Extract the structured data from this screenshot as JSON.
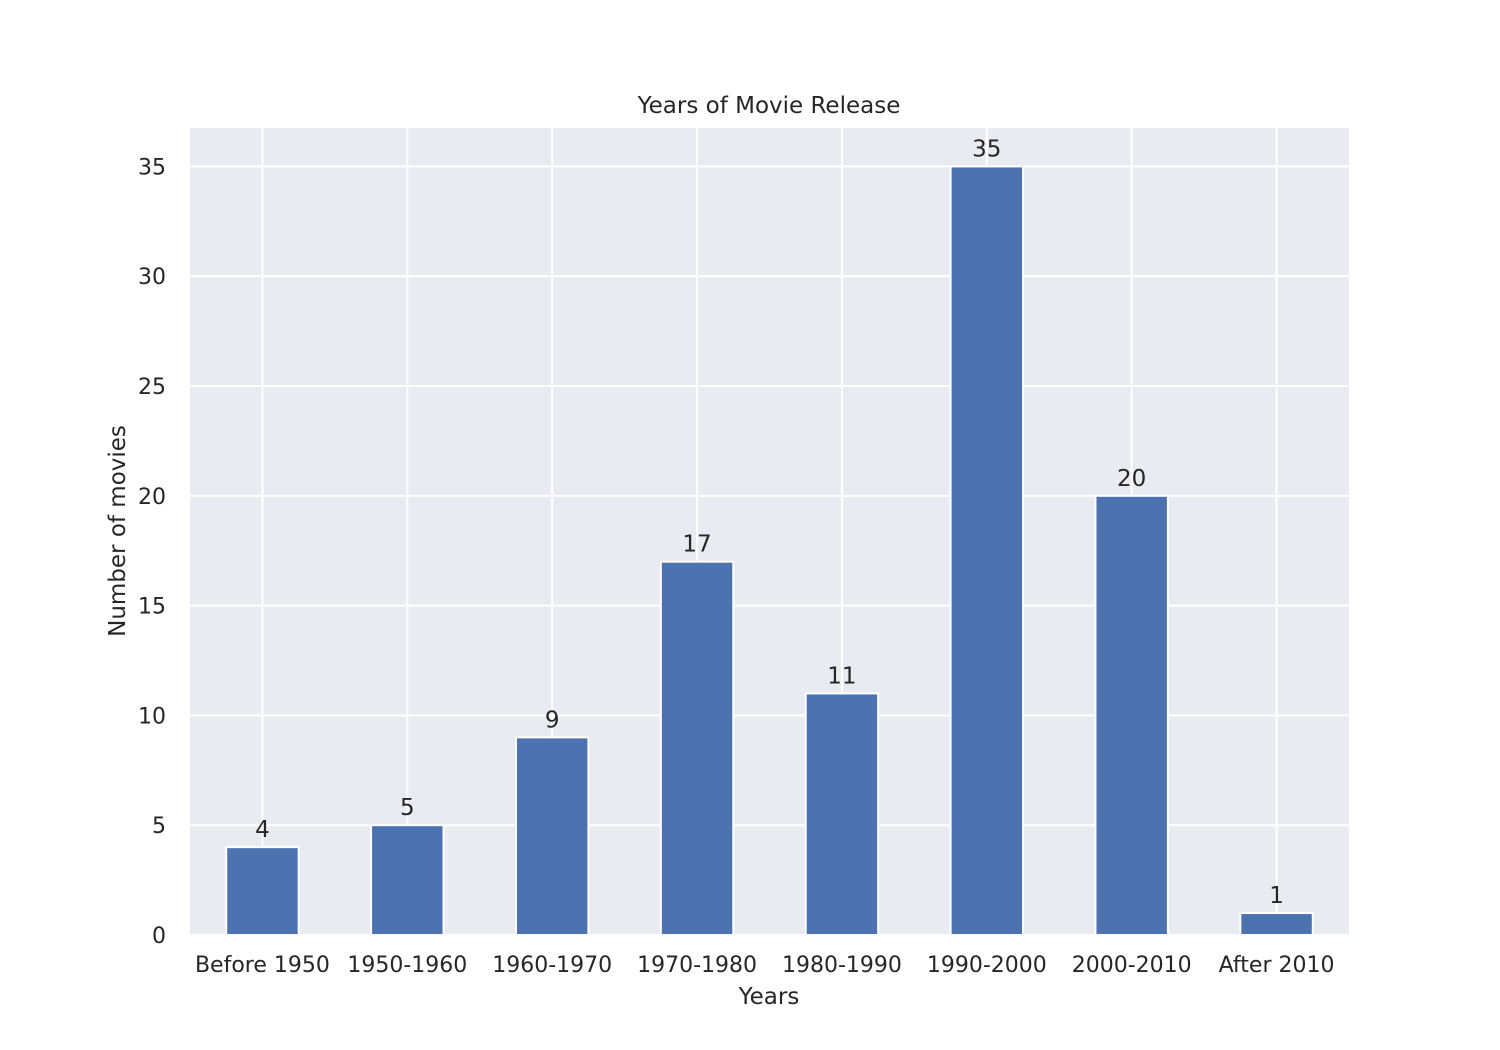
{
  "chart_data": {
    "type": "bar",
    "title": "Years of Movie Release",
    "xlabel": "Years",
    "ylabel": "Number of movies",
    "categories": [
      "Before 1950",
      "1950-1960",
      "1960-1970",
      "1970-1980",
      "1980-1990",
      "1990-2000",
      "2000-2010",
      "After 2010"
    ],
    "values": [
      4,
      5,
      9,
      17,
      11,
      35,
      20,
      1
    ],
    "ylim": [
      0,
      36.75
    ],
    "yticks": [
      0,
      5,
      10,
      15,
      20,
      25,
      30,
      35
    ],
    "grid": true,
    "colors": {
      "bar": "#4c72b0",
      "plot_background": "#eaeaf2",
      "grid": "#ffffff",
      "text": "#262626"
    }
  }
}
